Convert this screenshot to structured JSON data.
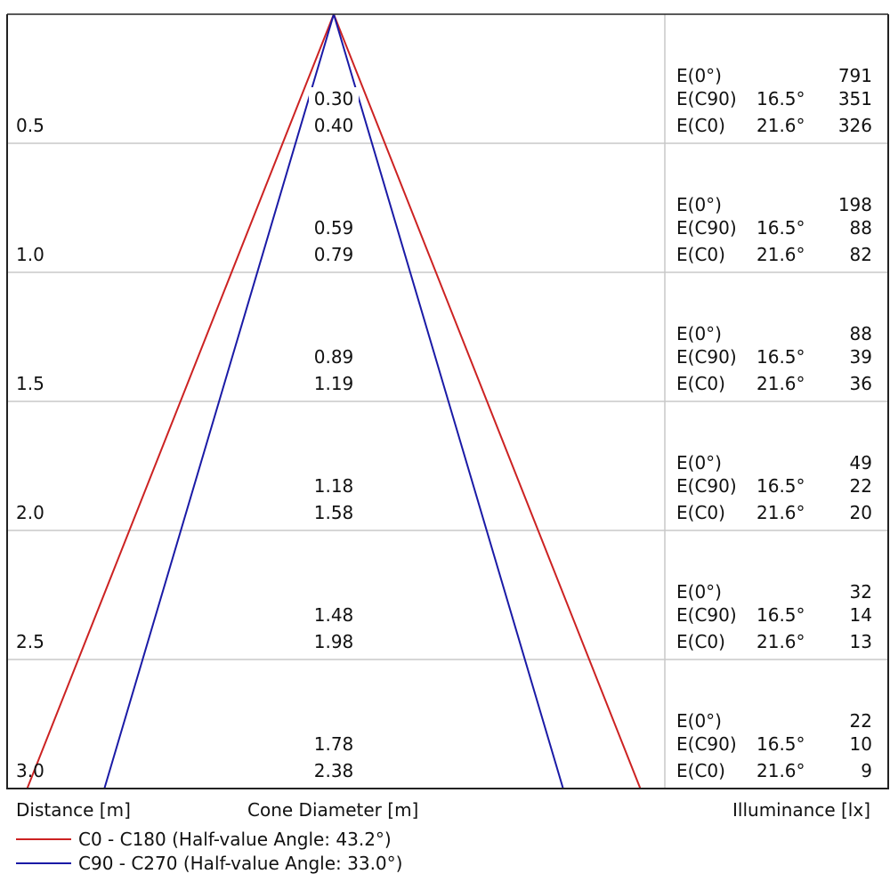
{
  "chart_data": {
    "type": "cone-diagram",
    "columns": {
      "distance": "Distance [m]",
      "cone_diameter": "Cone Diameter [m]",
      "illuminance": "Illuminance [lx]"
    },
    "series": [
      {
        "name": "C0 - C180 (Half-value Angle: 43.2°)",
        "half_angle_deg": 21.6,
        "color": "#cc2222"
      },
      {
        "name": "C90 - C270 (Half-value Angle: 33.0°)",
        "half_angle_deg": 16.5,
        "color": "#1a1aa6"
      }
    ],
    "rows": [
      {
        "distance": "0.5",
        "d_c90": "0.30",
        "d_c0": "0.40",
        "e0_label": "E(0°)",
        "e0": "791",
        "ec90_label": "E(C90)",
        "ec90_angle": "16.5°",
        "ec90": "351",
        "ec0_label": "E(C0)",
        "ec0_angle": "21.6°",
        "ec0": "326"
      },
      {
        "distance": "1.0",
        "d_c90": "0.59",
        "d_c0": "0.79",
        "e0_label": "E(0°)",
        "e0": "198",
        "ec90_label": "E(C90)",
        "ec90_angle": "16.5°",
        "ec90": "88",
        "ec0_label": "E(C0)",
        "ec0_angle": "21.6°",
        "ec0": "82"
      },
      {
        "distance": "1.5",
        "d_c90": "0.89",
        "d_c0": "1.19",
        "e0_label": "E(0°)",
        "e0": "88",
        "ec90_label": "E(C90)",
        "ec90_angle": "16.5°",
        "ec90": "39",
        "ec0_label": "E(C0)",
        "ec0_angle": "21.6°",
        "ec0": "36"
      },
      {
        "distance": "2.0",
        "d_c90": "1.18",
        "d_c0": "1.58",
        "e0_label": "E(0°)",
        "e0": "49",
        "ec90_label": "E(C90)",
        "ec90_angle": "16.5°",
        "ec90": "22",
        "ec0_label": "E(C0)",
        "ec0_angle": "21.6°",
        "ec0": "20"
      },
      {
        "distance": "2.5",
        "d_c90": "1.48",
        "d_c0": "1.98",
        "e0_label": "E(0°)",
        "e0": "32",
        "ec90_label": "E(C90)",
        "ec90_angle": "16.5°",
        "ec90": "14",
        "ec0_label": "E(C0)",
        "ec0_angle": "21.6°",
        "ec0": "13"
      },
      {
        "distance": "3.0",
        "d_c90": "1.78",
        "d_c0": "2.38",
        "e0_label": "E(0°)",
        "e0": "22",
        "ec90_label": "E(C90)",
        "ec90_angle": "16.5°",
        "ec90": "10",
        "ec0_label": "E(C0)",
        "ec0_angle": "21.6°",
        "ec0": "9"
      }
    ],
    "grid": true,
    "legend_position": "bottom-left"
  }
}
